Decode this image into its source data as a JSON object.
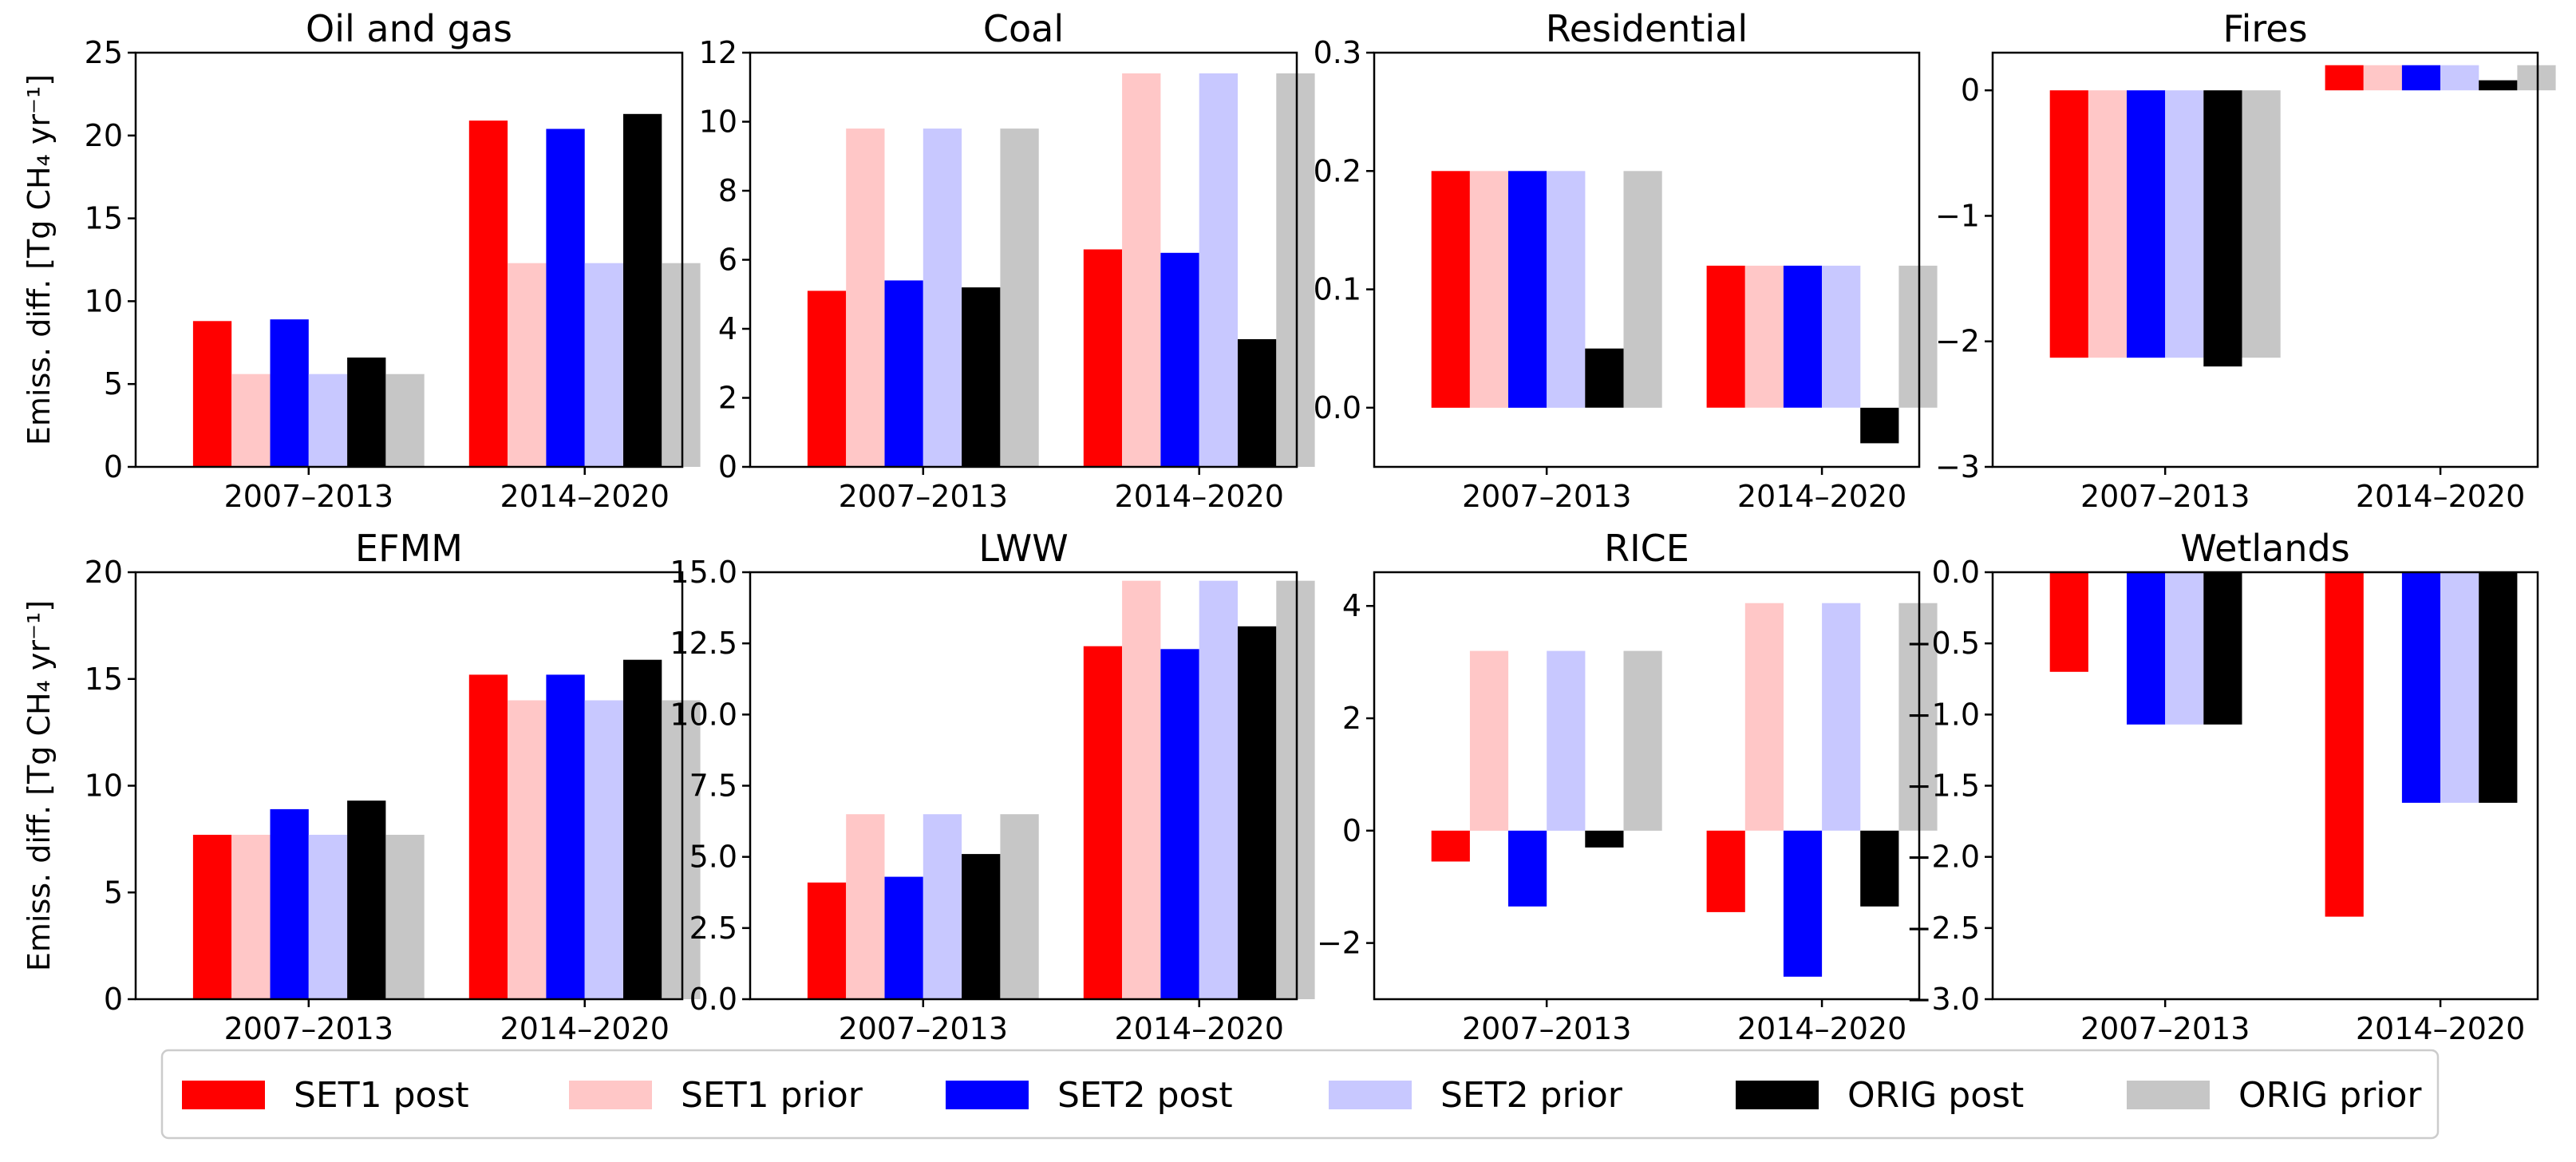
{
  "chart_data": {
    "type": "bar",
    "ylabel": "Emiss. diff. [Tg CH₄ yr⁻¹]",
    "categories": [
      "2007–2013",
      "2014–2020"
    ],
    "series_names": [
      "SET1 post",
      "SET1 prior",
      "SET2 post",
      "SET2 prior",
      "ORIG post",
      "ORIG prior"
    ],
    "series_colors": [
      "#ff0000",
      "#ffc7c7",
      "#0000ff",
      "#c8c8ff",
      "#000000",
      "#c6c6c6"
    ],
    "legend": {
      "placement": "bottom-center"
    },
    "panels": [
      {
        "title": "Oil and gas",
        "ylim": [
          0,
          25
        ],
        "yticks": [
          "0",
          "5",
          "10",
          "15",
          "20",
          "25"
        ],
        "show_ylabel": true,
        "values": [
          [
            8.8,
            5.6,
            8.9,
            5.6,
            6.6,
            5.6
          ],
          [
            20.9,
            12.3,
            20.4,
            12.3,
            21.3,
            12.3
          ]
        ]
      },
      {
        "title": "Coal",
        "ylim": [
          0,
          12
        ],
        "yticks": [
          "0",
          "2",
          "4",
          "6",
          "8",
          "10",
          "12"
        ],
        "show_ylabel": false,
        "values": [
          [
            5.1,
            9.8,
            5.4,
            9.8,
            5.2,
            9.8
          ],
          [
            6.3,
            11.4,
            6.2,
            11.4,
            3.7,
            11.4
          ]
        ]
      },
      {
        "title": "Residential",
        "ylim": [
          -0.05,
          0.3
        ],
        "yticks": [
          "0.0",
          "0.1",
          "0.2",
          "0.3"
        ],
        "show_ylabel": false,
        "values": [
          [
            0.2,
            0.2,
            0.2,
            0.2,
            0.05,
            0.2
          ],
          [
            0.12,
            0.12,
            0.12,
            0.12,
            -0.03,
            0.12
          ]
        ]
      },
      {
        "title": "Fires",
        "ylim": [
          -3,
          0.3
        ],
        "yticks": [
          "0",
          "−1",
          "−2",
          "−3"
        ],
        "show_ylabel": false,
        "values": [
          [
            -2.13,
            -2.13,
            -2.13,
            -2.13,
            -2.2,
            -2.13
          ],
          [
            0.2,
            0.2,
            0.2,
            0.2,
            0.08,
            0.2
          ]
        ]
      },
      {
        "title": "EFMM",
        "ylim": [
          0,
          20
        ],
        "yticks": [
          "0",
          "5",
          "10",
          "15",
          "20"
        ],
        "show_ylabel": true,
        "values": [
          [
            7.7,
            7.7,
            8.9,
            7.7,
            9.3,
            7.7
          ],
          [
            15.2,
            14.0,
            15.2,
            14.0,
            15.9,
            14.0
          ]
        ]
      },
      {
        "title": "LWW",
        "ylim": [
          0,
          15
        ],
        "yticks": [
          "0.0",
          "2.5",
          "5.0",
          "7.5",
          "10.0",
          "12.5",
          "15.0"
        ],
        "show_ylabel": false,
        "values": [
          [
            4.1,
            6.5,
            4.3,
            6.5,
            5.1,
            6.5
          ],
          [
            12.4,
            14.7,
            12.3,
            14.7,
            13.1,
            14.7
          ]
        ]
      },
      {
        "title": "RICE",
        "ylim": [
          -3,
          4.6
        ],
        "yticks": [
          "−2",
          "0",
          "2",
          "4"
        ],
        "show_ylabel": false,
        "values": [
          [
            -0.55,
            3.2,
            -1.35,
            3.2,
            -0.3,
            3.2
          ],
          [
            -1.45,
            4.05,
            -2.6,
            4.05,
            -1.35,
            4.05
          ]
        ]
      },
      {
        "title": "Wetlands",
        "ylim": [
          -3,
          0
        ],
        "yticks": [
          "0.0",
          "−0.5",
          "−1.0",
          "−1.5",
          "−2.0",
          "−2.5",
          "−3.0"
        ],
        "show_ylabel": false,
        "values": [
          [
            -0.7,
            0,
            -1.07,
            -1.07,
            -1.07,
            0
          ],
          [
            -2.42,
            0,
            -1.62,
            -1.62,
            -1.62,
            0
          ]
        ]
      }
    ]
  }
}
